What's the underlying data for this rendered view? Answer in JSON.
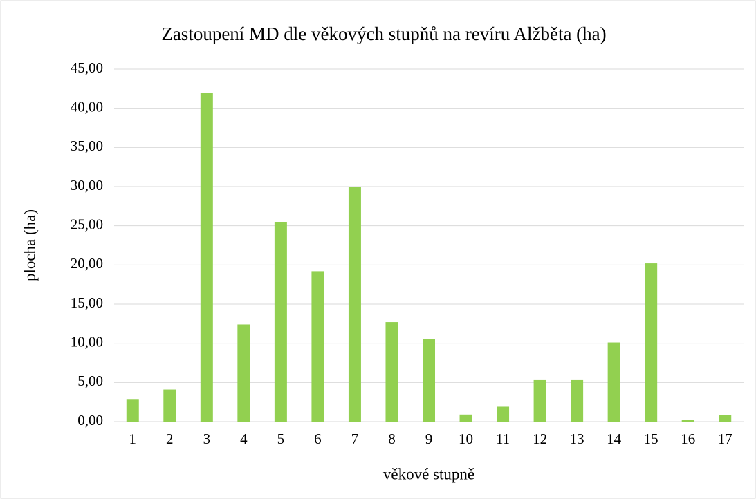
{
  "chart_data": {
    "type": "bar",
    "title": "Zastoupení MD dle věkových stupňů na revíru Alžběta (ha)",
    "xlabel": "věkové stupně",
    "ylabel": "plocha (ha)",
    "categories": [
      "1",
      "2",
      "3",
      "4",
      "5",
      "6",
      "7",
      "8",
      "9",
      "10",
      "11",
      "12",
      "13",
      "14",
      "15",
      "16",
      "17"
    ],
    "values": [
      2.8,
      4.1,
      42.0,
      12.4,
      25.5,
      19.2,
      30.0,
      12.7,
      10.5,
      0.9,
      1.9,
      5.3,
      5.3,
      10.1,
      20.2,
      0.2,
      0.8
    ],
    "color": "#92d050",
    "ylim": [
      0,
      45
    ],
    "yticks": [
      {
        "value": 0,
        "label": "0,00"
      },
      {
        "value": 5,
        "label": "5,00"
      },
      {
        "value": 10,
        "label": "10,00"
      },
      {
        "value": 15,
        "label": "15,00"
      },
      {
        "value": 20,
        "label": "20,00"
      },
      {
        "value": 25,
        "label": "25,00"
      },
      {
        "value": 30,
        "label": "30,00"
      },
      {
        "value": 35,
        "label": "35,00"
      },
      {
        "value": 40,
        "label": "40,00"
      },
      {
        "value": 45,
        "label": "45,00"
      }
    ],
    "grid": true
  }
}
